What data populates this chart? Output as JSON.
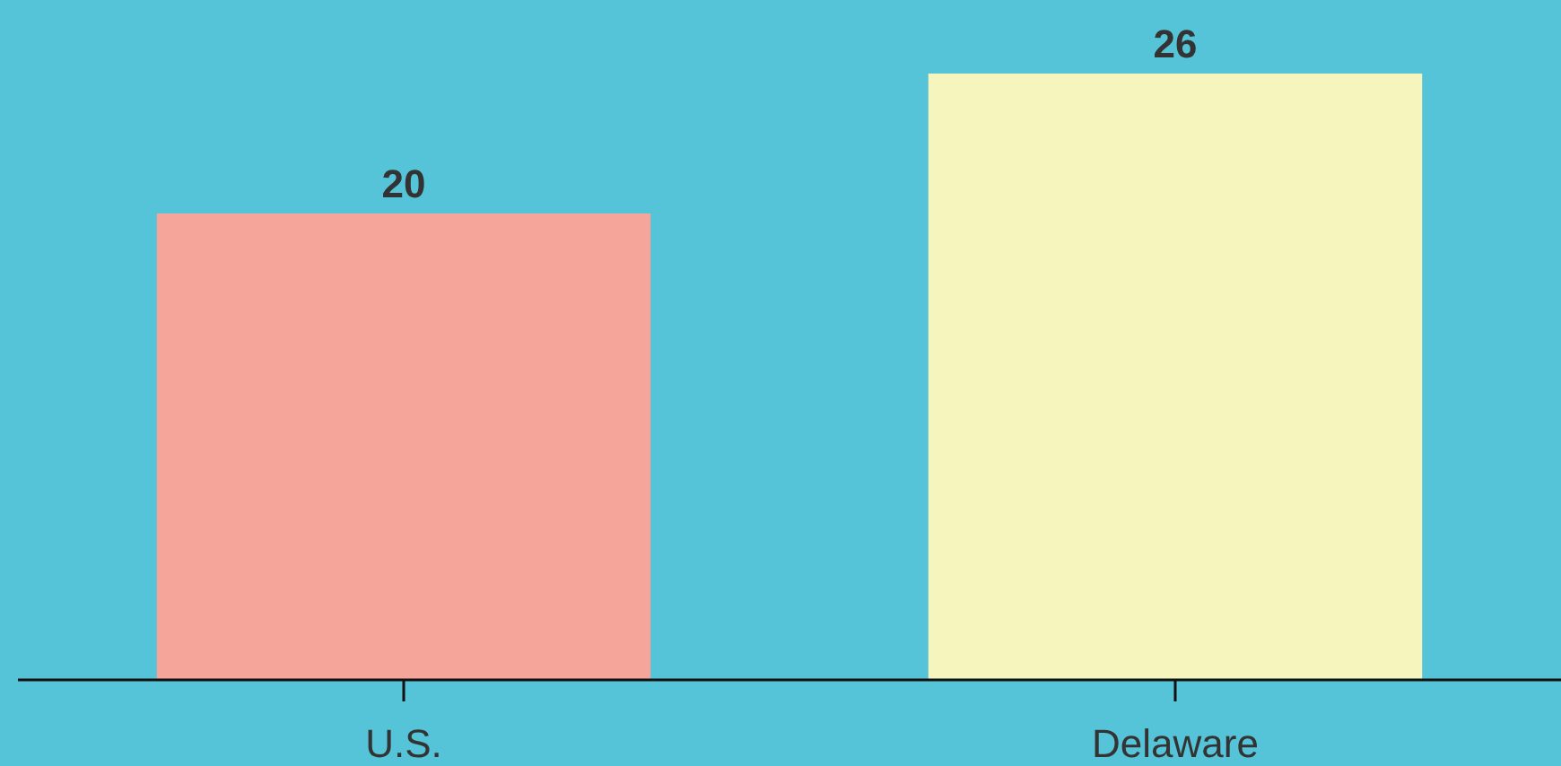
{
  "chart_data": {
    "type": "bar",
    "categories": [
      "U.S.",
      "Delaware"
    ],
    "values": [
      20,
      26
    ],
    "colors": [
      "#f5a59a",
      "#f5f5bd"
    ],
    "data_labels": true
  }
}
